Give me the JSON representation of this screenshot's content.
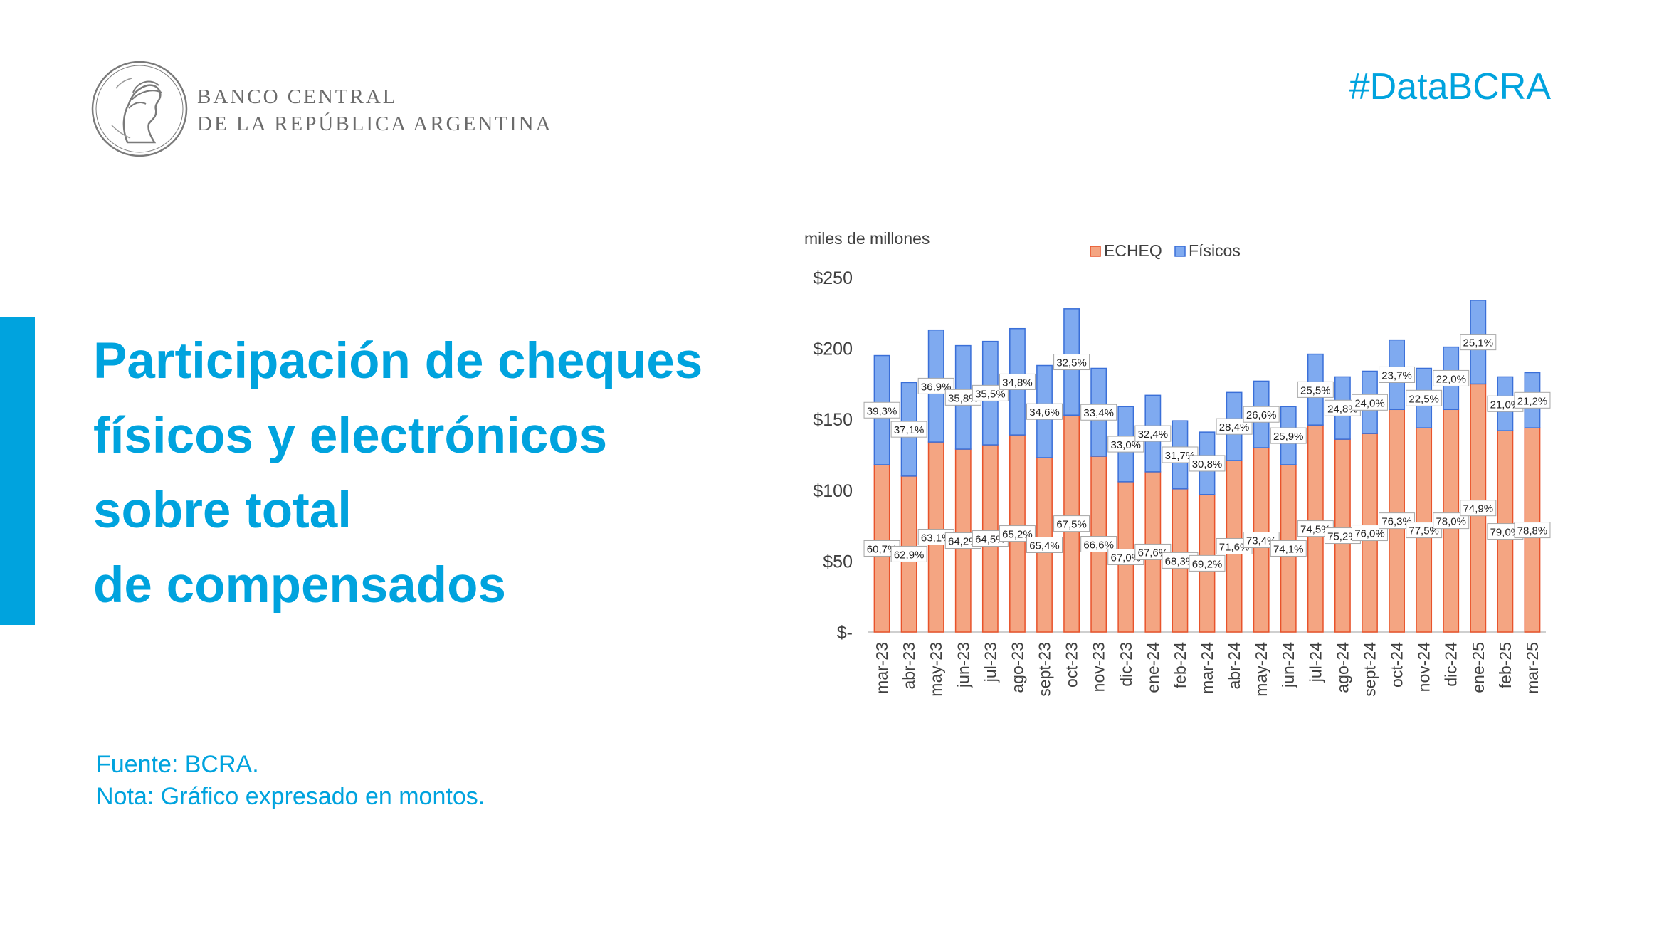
{
  "header": {
    "bank_line1": "BANCO CENTRAL",
    "bank_line2": "DE LA REPÚBLICA ARGENTINA",
    "hashtag": "#DataBCRA"
  },
  "title_lines": [
    "Participación de cheques",
    "físicos y electrónicos",
    "sobre total",
    "de compensados"
  ],
  "footer": {
    "source": "Fuente: BCRA.",
    "note": "Nota: Gráfico expresado en montos."
  },
  "colors": {
    "brand": "#00a3de",
    "echeq_fill": "#f4a582",
    "echeq_stroke": "#e8532b",
    "fisicos_fill": "#7faaf0",
    "fisicos_stroke": "#3a6fd8"
  },
  "chart_data": {
    "type": "bar",
    "stacked": true,
    "y_unit_label": "miles de millones",
    "ylim": [
      0,
      250
    ],
    "y_ticks": [
      {
        "value": 0,
        "label": "$-"
      },
      {
        "value": 50,
        "label": "$50"
      },
      {
        "value": 100,
        "label": "$100"
      },
      {
        "value": 150,
        "label": "$150"
      },
      {
        "value": 200,
        "label": "$200"
      },
      {
        "value": 250,
        "label": "$250"
      }
    ],
    "legend_position": "top-center",
    "grid": false,
    "categories": [
      "mar-23",
      "abr-23",
      "may-23",
      "jun-23",
      "jul-23",
      "ago-23",
      "sept-23",
      "oct-23",
      "nov-23",
      "dic-23",
      "ene-24",
      "feb-24",
      "mar-24",
      "abr-24",
      "may-24",
      "jun-24",
      "jul-24",
      "ago-24",
      "sept-24",
      "oct-24",
      "nov-24",
      "dic-24",
      "ene-25",
      "feb-25",
      "mar-25"
    ],
    "series": [
      {
        "name": "ECHEQ",
        "values": [
          118,
          110,
          134,
          129,
          132,
          139,
          123,
          153,
          124,
          106,
          113,
          101,
          97,
          121,
          130,
          118,
          146,
          136,
          140,
          157,
          144,
          157,
          175,
          142,
          144
        ],
        "labels": [
          "60,7%",
          "62,9%",
          "63,1%",
          "64,2%",
          "64,5%",
          "65,2%",
          "65,4%",
          "67,5%",
          "66,6%",
          "67,0%",
          "67,6%",
          "68,3%",
          "69,2%",
          "71,6%",
          "73,4%",
          "74,1%",
          "74,5%",
          "75,2%",
          "76,0%",
          "76,3%",
          "77,5%",
          "78,0%",
          "74,9%",
          "79,0%",
          "78,8%"
        ]
      },
      {
        "name": "Físicos",
        "values": [
          77,
          66,
          79,
          73,
          73,
          75,
          65,
          75,
          62,
          53,
          54,
          48,
          44,
          48,
          47,
          41,
          50,
          44,
          44,
          49,
          42,
          44,
          59,
          38,
          39
        ],
        "labels": [
          "39,3%",
          "37,1%",
          "36,9%",
          "35,8%",
          "35,5%",
          "34,8%",
          "34,6%",
          "32,5%",
          "33,4%",
          "33,0%",
          "32,4%",
          "31,7%",
          "30,8%",
          "28,4%",
          "26,6%",
          "25,9%",
          "25,5%",
          "24,8%",
          "24,0%",
          "23,7%",
          "22,5%",
          "22,0%",
          "25,1%",
          "21,0%",
          "21,2%"
        ]
      }
    ]
  }
}
